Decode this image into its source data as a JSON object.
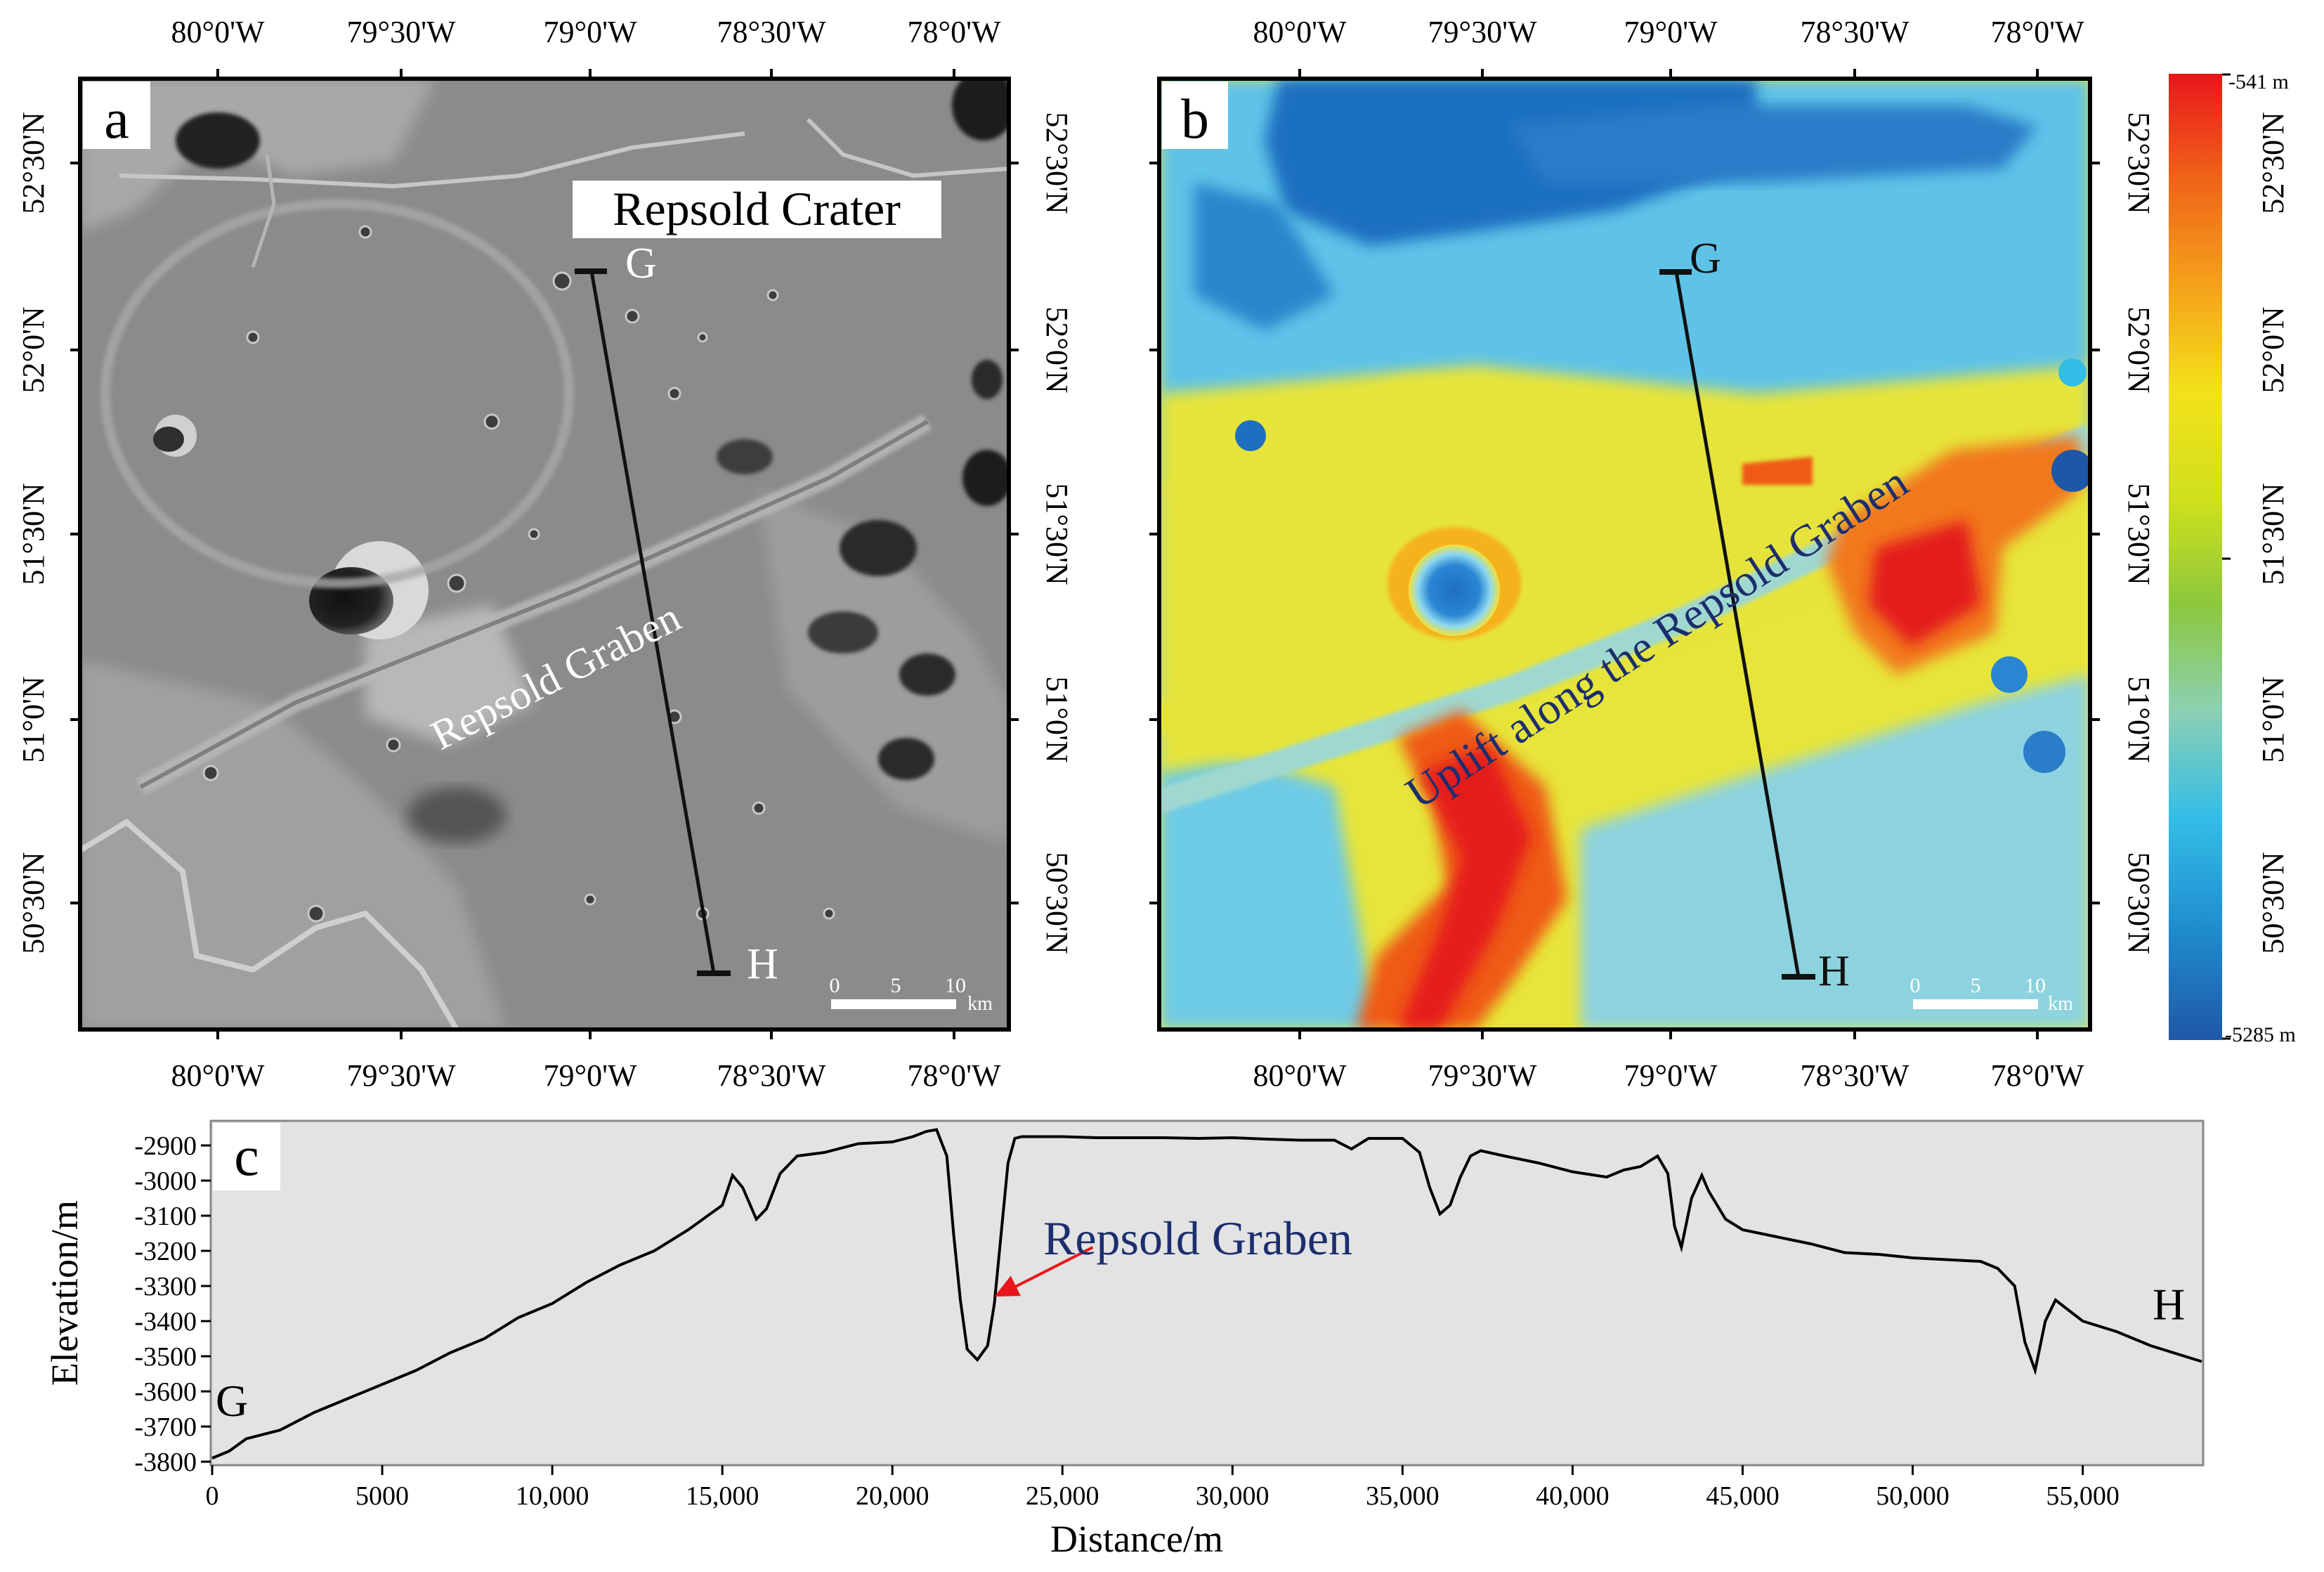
{
  "panels": {
    "a": {
      "letter": "a",
      "labels": {
        "crater": "Repsold Crater",
        "graben": "Repsold Graben"
      },
      "profile": {
        "start": "G",
        "end": "H"
      },
      "scalebar": {
        "ticks": [
          "0",
          "5",
          "10"
        ],
        "unit": "km"
      },
      "x_ticks": [
        "80°0'W",
        "79°30'W",
        "79°0'W",
        "78°30'W",
        "78°0'W"
      ],
      "y_ticks_left": [
        "52°30'N",
        "52°0'N",
        "51°30'N",
        "51°0'N",
        "50°30'N"
      ],
      "y_ticks_right": [
        "52°30'N",
        "52°0'N",
        "51°30'N",
        "51°0'N",
        "50°30'N"
      ]
    },
    "b": {
      "letter": "b",
      "labels": {
        "uplift": "Uplift along the Repsold Graben"
      },
      "profile": {
        "start": "G",
        "end": "H"
      },
      "scalebar": {
        "ticks": [
          "0",
          "5",
          "10"
        ],
        "unit": "km"
      },
      "x_ticks": [
        "80°0'W",
        "79°30'W",
        "79°0'W",
        "78°30'W",
        "78°0'W"
      ],
      "y_ticks_right": [
        "52°30'N",
        "52°0'N",
        "51°30'N",
        "51°0'N",
        "50°30'N"
      ],
      "colorbar": {
        "max_label": "-541 m",
        "min_label": "-5285 m",
        "tick_labels": [
          "52°30'N",
          "52°0'N",
          "51°30'N",
          "51°0'N",
          "50°30'N"
        ],
        "colors": [
          "#e8161b",
          "#f06418",
          "#f5a21b",
          "#f3e21a",
          "#cfe01c",
          "#8cc83c",
          "#8cd0b4",
          "#33bde6",
          "#1f8fd0",
          "#1f57a8"
        ]
      }
    },
    "c": {
      "letter": "c"
    }
  },
  "chart_data": {
    "type": "line",
    "xlabel": "Distance/m",
    "ylabel": "Elevation/m",
    "xlim": [
      0,
      58500
    ],
    "ylim": [
      -3800,
      -2840
    ],
    "x_ticks": [
      0,
      5000,
      10000,
      15000,
      20000,
      25000,
      30000,
      35000,
      40000,
      45000,
      50000,
      55000
    ],
    "x_tick_labels": [
      "0",
      "5000",
      "10,000",
      "15,000",
      "20,000",
      "25,000",
      "30,000",
      "35,000",
      "40,000",
      "45,000",
      "50,000",
      "55,000"
    ],
    "y_ticks": [
      -2900,
      -3000,
      -3100,
      -3200,
      -3300,
      -3400,
      -3500,
      -3600,
      -3700,
      -3800
    ],
    "y_tick_labels": [
      "-2900",
      "-3000",
      "-3100",
      "-3200",
      "-3300",
      "-3400",
      "-3500",
      "-3600",
      "-3700",
      "-3800"
    ],
    "endpoint_labels": [
      "G",
      "H"
    ],
    "annotation": {
      "text": "Repsold Graben",
      "x": 23000,
      "y": -3330
    },
    "series": [
      {
        "x": [
          0,
          500,
          1000,
          2000,
          3000,
          4000,
          5000,
          6000,
          7000,
          8000,
          9000,
          10000,
          11000,
          12000,
          13000,
          14000,
          15000,
          15300,
          15600,
          16000,
          16300,
          16700,
          17200,
          18000,
          19000,
          20000,
          20600,
          21000,
          21300,
          21600,
          21800,
          22000,
          22200,
          22500,
          22800,
          23000,
          23200,
          23400,
          23600,
          23800,
          24000,
          25000,
          26000,
          27000,
          28000,
          29000,
          30000,
          31000,
          32000,
          33000,
          33500,
          34000,
          35000,
          35500,
          35800,
          36100,
          36400,
          36700,
          37000,
          37300,
          38000,
          39000,
          40000,
          41000,
          41500,
          42000,
          42500,
          42800,
          43000,
          43200,
          43500,
          43800,
          44000,
          44500,
          45000,
          46000,
          47000,
          48000,
          49000,
          50000,
          51000,
          52000,
          52500,
          53000,
          53300,
          53600,
          53900,
          54200,
          54600,
          55000,
          56000,
          57000,
          58000,
          58500
        ],
        "y": [
          -3790,
          -3770,
          -3735,
          -3710,
          -3660,
          -3620,
          -3580,
          -3540,
          -3490,
          -3450,
          -3390,
          -3350,
          -3290,
          -3240,
          -3200,
          -3140,
          -3070,
          -2985,
          -3020,
          -3110,
          -3080,
          -2980,
          -2930,
          -2920,
          -2895,
          -2890,
          -2875,
          -2860,
          -2855,
          -2930,
          -3150,
          -3340,
          -3480,
          -3510,
          -3470,
          -3350,
          -3150,
          -2950,
          -2880,
          -2875,
          -2875,
          -2875,
          -2878,
          -2878,
          -2878,
          -2880,
          -2878,
          -2882,
          -2885,
          -2885,
          -2910,
          -2880,
          -2880,
          -2920,
          -3020,
          -3095,
          -3070,
          -2990,
          -2930,
          -2915,
          -2930,
          -2950,
          -2975,
          -2990,
          -2970,
          -2960,
          -2930,
          -2980,
          -3130,
          -3190,
          -3050,
          -2985,
          -3030,
          -3110,
          -3140,
          -3160,
          -3180,
          -3205,
          -3210,
          -3220,
          -3225,
          -3230,
          -3250,
          -3300,
          -3460,
          -3540,
          -3400,
          -3340,
          -3370,
          -3400,
          -3430,
          -3470,
          -3500,
          -3515
        ]
      }
    ]
  }
}
